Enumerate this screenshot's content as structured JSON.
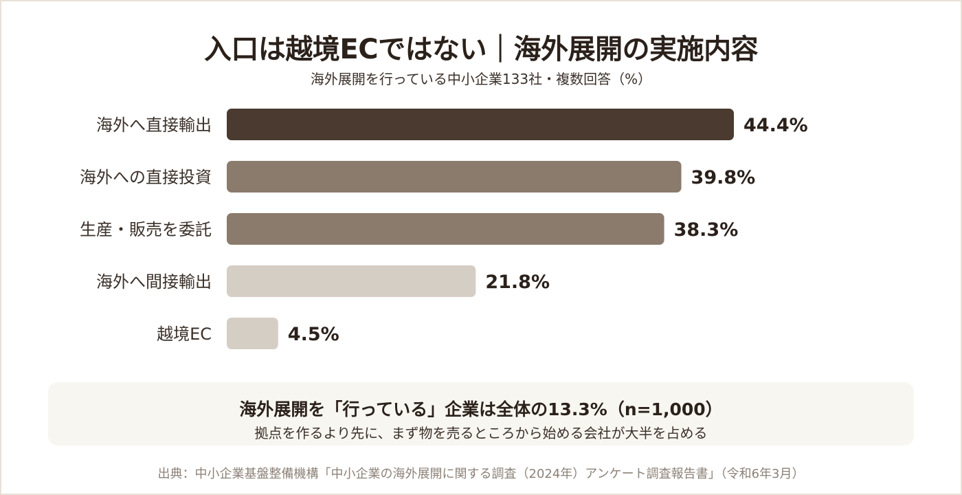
{
  "title": "入口は越境ECではない｜海外展開の実施内容",
  "subtitle": "海外展開を行っている中小企業133社・複数回答（%）",
  "chart_data": {
    "type": "bar",
    "orientation": "horizontal",
    "categories": [
      "海外へ直接輸出",
      "海外への直接投資",
      "生産・販売を委託",
      "海外へ間接輸出",
      "越境EC"
    ],
    "values": [
      44.4,
      39.8,
      38.3,
      21.8,
      4.5
    ],
    "value_labels": [
      "44.4%",
      "39.8%",
      "38.3%",
      "21.8%",
      "4.5%"
    ],
    "bar_colors": [
      "#4a3a2f",
      "#8a7b6c",
      "#8a7b6c",
      "#d5cec5",
      "#d5cec5"
    ],
    "title": "入口は越境ECではない｜海外展開の実施内容",
    "subtitle": "海外展開を行っている中小企業133社・複数回答（%）",
    "xlim": [
      0,
      52
    ],
    "grid": false,
    "legend": "none"
  },
  "note": {
    "headline": "海外展開を「行っている」企業は全体の13.3%（n=1,000）",
    "detail": "拠点を作るより先に、まず物を売るところから始める会社が大半を占める"
  },
  "source": "出典：中小企業基盤整備機構「中小企業の海外展開に関する調査（2024年）アンケート調査報告書」（令和6年3月）",
  "colors": {
    "text_dark": "#2b211b",
    "bar_dark": "#4a3a2f",
    "bar_mid": "#8a7b6c",
    "bar_light": "#d5cec5",
    "note_bg": "#f8f6f1",
    "source_text": "#8c8177"
  }
}
